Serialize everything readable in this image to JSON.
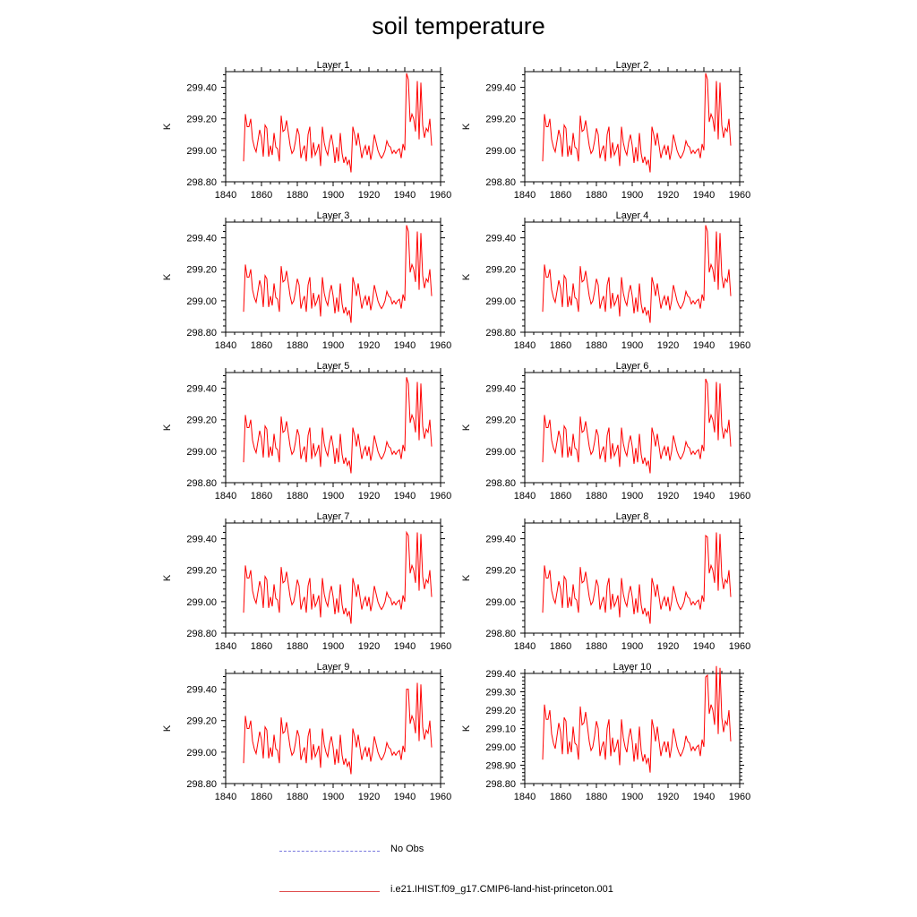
{
  "title": "soil temperature",
  "colors": {
    "model_line": "#ff0000",
    "obs_line": "#6666cc",
    "axis": "#000000"
  },
  "legend": {
    "obs_label": "No Obs",
    "model_label": "i.e21.IHIST.f09_g17.CMIP6-land-hist-princeton.001"
  },
  "chart_data": [
    {
      "type": "line",
      "title": "Layer 1",
      "ylabel": "K",
      "xlim": [
        1840,
        1960
      ],
      "ylim": [
        298.8,
        299.5
      ],
      "xticks": [
        1840,
        1860,
        1880,
        1900,
        1920,
        1940,
        1960
      ],
      "yticks": [
        298.8,
        299.0,
        299.2,
        299.4
      ],
      "ytick_labels": [
        "298.80",
        "299.00",
        "299.20",
        "299.40"
      ],
      "spike": [
        299.49,
        299.45
      ],
      "series_name": "i.e21.IHIST.f09_g17.CMIP6-land-hist-princeton.001"
    },
    {
      "type": "line",
      "title": "Layer 2",
      "ylabel": "K",
      "xlim": [
        1840,
        1960
      ],
      "ylim": [
        298.8,
        299.5
      ],
      "xticks": [
        1840,
        1860,
        1880,
        1900,
        1920,
        1940,
        1960
      ],
      "yticks": [
        298.8,
        299.0,
        299.2,
        299.4
      ],
      "ytick_labels": [
        "298.80",
        "299.00",
        "299.20",
        "299.40"
      ],
      "spike": [
        299.49,
        299.45
      ],
      "series_name": "i.e21.IHIST.f09_g17.CMIP6-land-hist-princeton.001"
    },
    {
      "type": "line",
      "title": "Layer 3",
      "ylabel": "K",
      "xlim": [
        1840,
        1960
      ],
      "ylim": [
        298.8,
        299.5
      ],
      "xticks": [
        1840,
        1860,
        1880,
        1900,
        1920,
        1940,
        1960
      ],
      "yticks": [
        298.8,
        299.0,
        299.2,
        299.4
      ],
      "ytick_labels": [
        "298.80",
        "299.00",
        "299.20",
        "299.40"
      ],
      "spike": [
        299.48,
        299.44
      ],
      "series_name": "i.e21.IHIST.f09_g17.CMIP6-land-hist-princeton.001"
    },
    {
      "type": "line",
      "title": "Layer 4",
      "ylabel": "K",
      "xlim": [
        1840,
        1960
      ],
      "ylim": [
        298.8,
        299.5
      ],
      "xticks": [
        1840,
        1860,
        1880,
        1900,
        1920,
        1940,
        1960
      ],
      "yticks": [
        298.8,
        299.0,
        299.2,
        299.4
      ],
      "ytick_labels": [
        "298.80",
        "299.00",
        "299.20",
        "299.40"
      ],
      "spike": [
        299.48,
        299.44
      ],
      "series_name": "i.e21.IHIST.f09_g17.CMIP6-land-hist-princeton.001"
    },
    {
      "type": "line",
      "title": "Layer 5",
      "ylabel": "K",
      "xlim": [
        1840,
        1960
      ],
      "ylim": [
        298.8,
        299.5
      ],
      "xticks": [
        1840,
        1860,
        1880,
        1900,
        1920,
        1940,
        1960
      ],
      "yticks": [
        298.8,
        299.0,
        299.2,
        299.4
      ],
      "ytick_labels": [
        "298.80",
        "299.00",
        "299.20",
        "299.40"
      ],
      "spike": [
        299.47,
        299.43
      ],
      "series_name": "i.e21.IHIST.f09_g17.CMIP6-land-hist-princeton.001"
    },
    {
      "type": "line",
      "title": "Layer 6",
      "ylabel": "K",
      "xlim": [
        1840,
        1960
      ],
      "ylim": [
        298.8,
        299.5
      ],
      "xticks": [
        1840,
        1860,
        1880,
        1900,
        1920,
        1940,
        1960
      ],
      "yticks": [
        298.8,
        299.0,
        299.2,
        299.4
      ],
      "ytick_labels": [
        "298.80",
        "299.00",
        "299.20",
        "299.40"
      ],
      "spike": [
        299.46,
        299.43
      ],
      "series_name": "i.e21.IHIST.f09_g17.CMIP6-land-hist-princeton.001"
    },
    {
      "type": "line",
      "title": "Layer 7",
      "ylabel": "K",
      "xlim": [
        1840,
        1960
      ],
      "ylim": [
        298.8,
        299.5
      ],
      "xticks": [
        1840,
        1860,
        1880,
        1900,
        1920,
        1940,
        1960
      ],
      "yticks": [
        298.8,
        299.0,
        299.2,
        299.4
      ],
      "ytick_labels": [
        "298.80",
        "299.00",
        "299.20",
        "299.40"
      ],
      "spike": [
        299.44,
        299.42
      ],
      "series_name": "i.e21.IHIST.f09_g17.CMIP6-land-hist-princeton.001"
    },
    {
      "type": "line",
      "title": "Layer 8",
      "ylabel": "K",
      "xlim": [
        1840,
        1960
      ],
      "ylim": [
        298.8,
        299.5
      ],
      "xticks": [
        1840,
        1860,
        1880,
        1900,
        1920,
        1940,
        1960
      ],
      "yticks": [
        298.8,
        299.0,
        299.2,
        299.4
      ],
      "ytick_labels": [
        "298.80",
        "299.00",
        "299.20",
        "299.40"
      ],
      "spike": [
        299.42,
        299.41
      ],
      "series_name": "i.e21.IHIST.f09_g17.CMIP6-land-hist-princeton.001"
    },
    {
      "type": "line",
      "title": "Layer 9",
      "ylabel": "K",
      "xlim": [
        1840,
        1960
      ],
      "ylim": [
        298.8,
        299.5
      ],
      "xticks": [
        1840,
        1860,
        1880,
        1900,
        1920,
        1940,
        1960
      ],
      "yticks": [
        298.8,
        299.0,
        299.2,
        299.4
      ],
      "ytick_labels": [
        "298.80",
        "299.00",
        "299.20",
        "299.40"
      ],
      "spike": [
        299.4,
        299.4
      ],
      "series_name": "i.e21.IHIST.f09_g17.CMIP6-land-hist-princeton.001"
    },
    {
      "type": "line",
      "title": "Layer 10",
      "ylabel": "K",
      "xlim": [
        1840,
        1960
      ],
      "ylim": [
        298.8,
        299.4
      ],
      "xticks": [
        1840,
        1860,
        1880,
        1900,
        1920,
        1940,
        1960
      ],
      "yticks": [
        298.8,
        298.9,
        299.0,
        299.1,
        299.2,
        299.3,
        299.4
      ],
      "ytick_labels": [
        "298.80",
        "298.90",
        "299.00",
        "299.10",
        "299.20",
        "299.30",
        "299.40"
      ],
      "spike": [
        299.38,
        299.39
      ],
      "series_name": "i.e21.IHIST.f09_g17.CMIP6-land-hist-princeton.001"
    }
  ],
  "base_series": {
    "x_start": 1850,
    "x_end": 1955,
    "y": [
      298.93,
      299.23,
      299.15,
      299.15,
      299.2,
      299.07,
      299.02,
      298.99,
      299.06,
      299.13,
      299.08,
      298.96,
      299.16,
      299.14,
      298.96,
      299.03,
      298.97,
      299.11,
      299.02,
      299.01,
      298.93,
      299.22,
      299.12,
      299.13,
      299.19,
      299.11,
      299.03,
      298.98,
      299.0,
      299.06,
      299.14,
      299.1,
      298.95,
      299.0,
      299.03,
      298.93,
      299.1,
      299.15,
      298.95,
      299.05,
      298.97,
      299.0,
      299.04,
      298.9,
      299.15,
      299.05,
      299.0,
      298.97,
      299.05,
      299.1,
      299.03,
      298.92,
      299.02,
      298.93,
      299.11,
      298.98,
      298.92,
      298.96,
      298.91,
      298.94,
      298.86,
      299.15,
      299.1,
      299.03,
      299.11,
      299.03,
      298.95,
      299.0,
      299.03,
      298.97,
      299.03,
      298.94,
      299.0,
      299.1,
      299.05,
      299.0,
      298.97,
      298.95,
      298.97,
      299.0,
      299.06,
      299.03,
      299.02,
      298.98,
      299.0,
      298.98,
      299.0,
      299.01,
      298.95,
      299.04,
      299.0,
      299.49,
      299.45,
      299.18,
      299.23,
      299.2,
      299.12,
      299.44,
      299.07,
      299.43,
      299.16,
      299.08,
      299.14,
      299.12,
      299.2,
      299.03
    ]
  }
}
